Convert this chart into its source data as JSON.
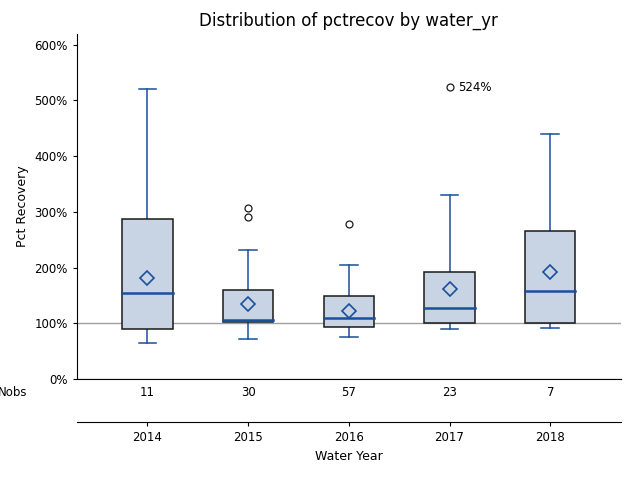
{
  "title": "Distribution of pctrecov by water_yr",
  "xlabel": "Water Year",
  "ylabel": "Pct Recovery",
  "years": [
    2014,
    2015,
    2016,
    2017,
    2018
  ],
  "nobs": [
    11,
    30,
    57,
    23,
    7
  ],
  "box_data": {
    "2014": {
      "whislo": 65,
      "q1": 90,
      "med": 155,
      "q3": 287,
      "whishi": 520,
      "mean": 182,
      "fliers": []
    },
    "2015": {
      "whislo": 72,
      "q1": 102,
      "med": 107,
      "q3": 160,
      "whishi": 232,
      "mean": 135,
      "fliers": [
        291,
        308
      ]
    },
    "2016": {
      "whislo": 75,
      "q1": 93,
      "med": 109,
      "q3": 150,
      "whishi": 205,
      "mean": 122,
      "fliers": [
        278
      ]
    },
    "2017": {
      "whislo": 90,
      "q1": 100,
      "med": 128,
      "q3": 193,
      "whishi": 330,
      "mean": 162,
      "fliers": [
        524
      ]
    },
    "2018": {
      "whislo": 92,
      "q1": 100,
      "med": 158,
      "q3": 265,
      "whishi": 440,
      "mean": 192,
      "fliers": []
    }
  },
  "outlier_label": {
    "year": 2017,
    "value": 524,
    "label": "524%"
  },
  "box_facecolor": "#c8d4e3",
  "box_edgecolor": "#1a1a1a",
  "median_color": "#1a4f9c",
  "whisker_color": "#1a4f9c",
  "flier_color": "#1a1a1a",
  "mean_marker_color": "#1a4f9c",
  "reference_line_y": 100,
  "reference_line_color": "#a0a0a0",
  "ylim": [
    0,
    620
  ],
  "yticks": [
    0,
    100,
    200,
    300,
    400,
    500,
    600
  ],
  "ytick_labels": [
    "0%",
    "100%",
    "200%",
    "300%",
    "400%",
    "500%",
    "600%"
  ],
  "background_color": "#ffffff",
  "plot_bg_color": "#ffffff",
  "title_fontsize": 12,
  "axis_label_fontsize": 9,
  "tick_fontsize": 8.5
}
